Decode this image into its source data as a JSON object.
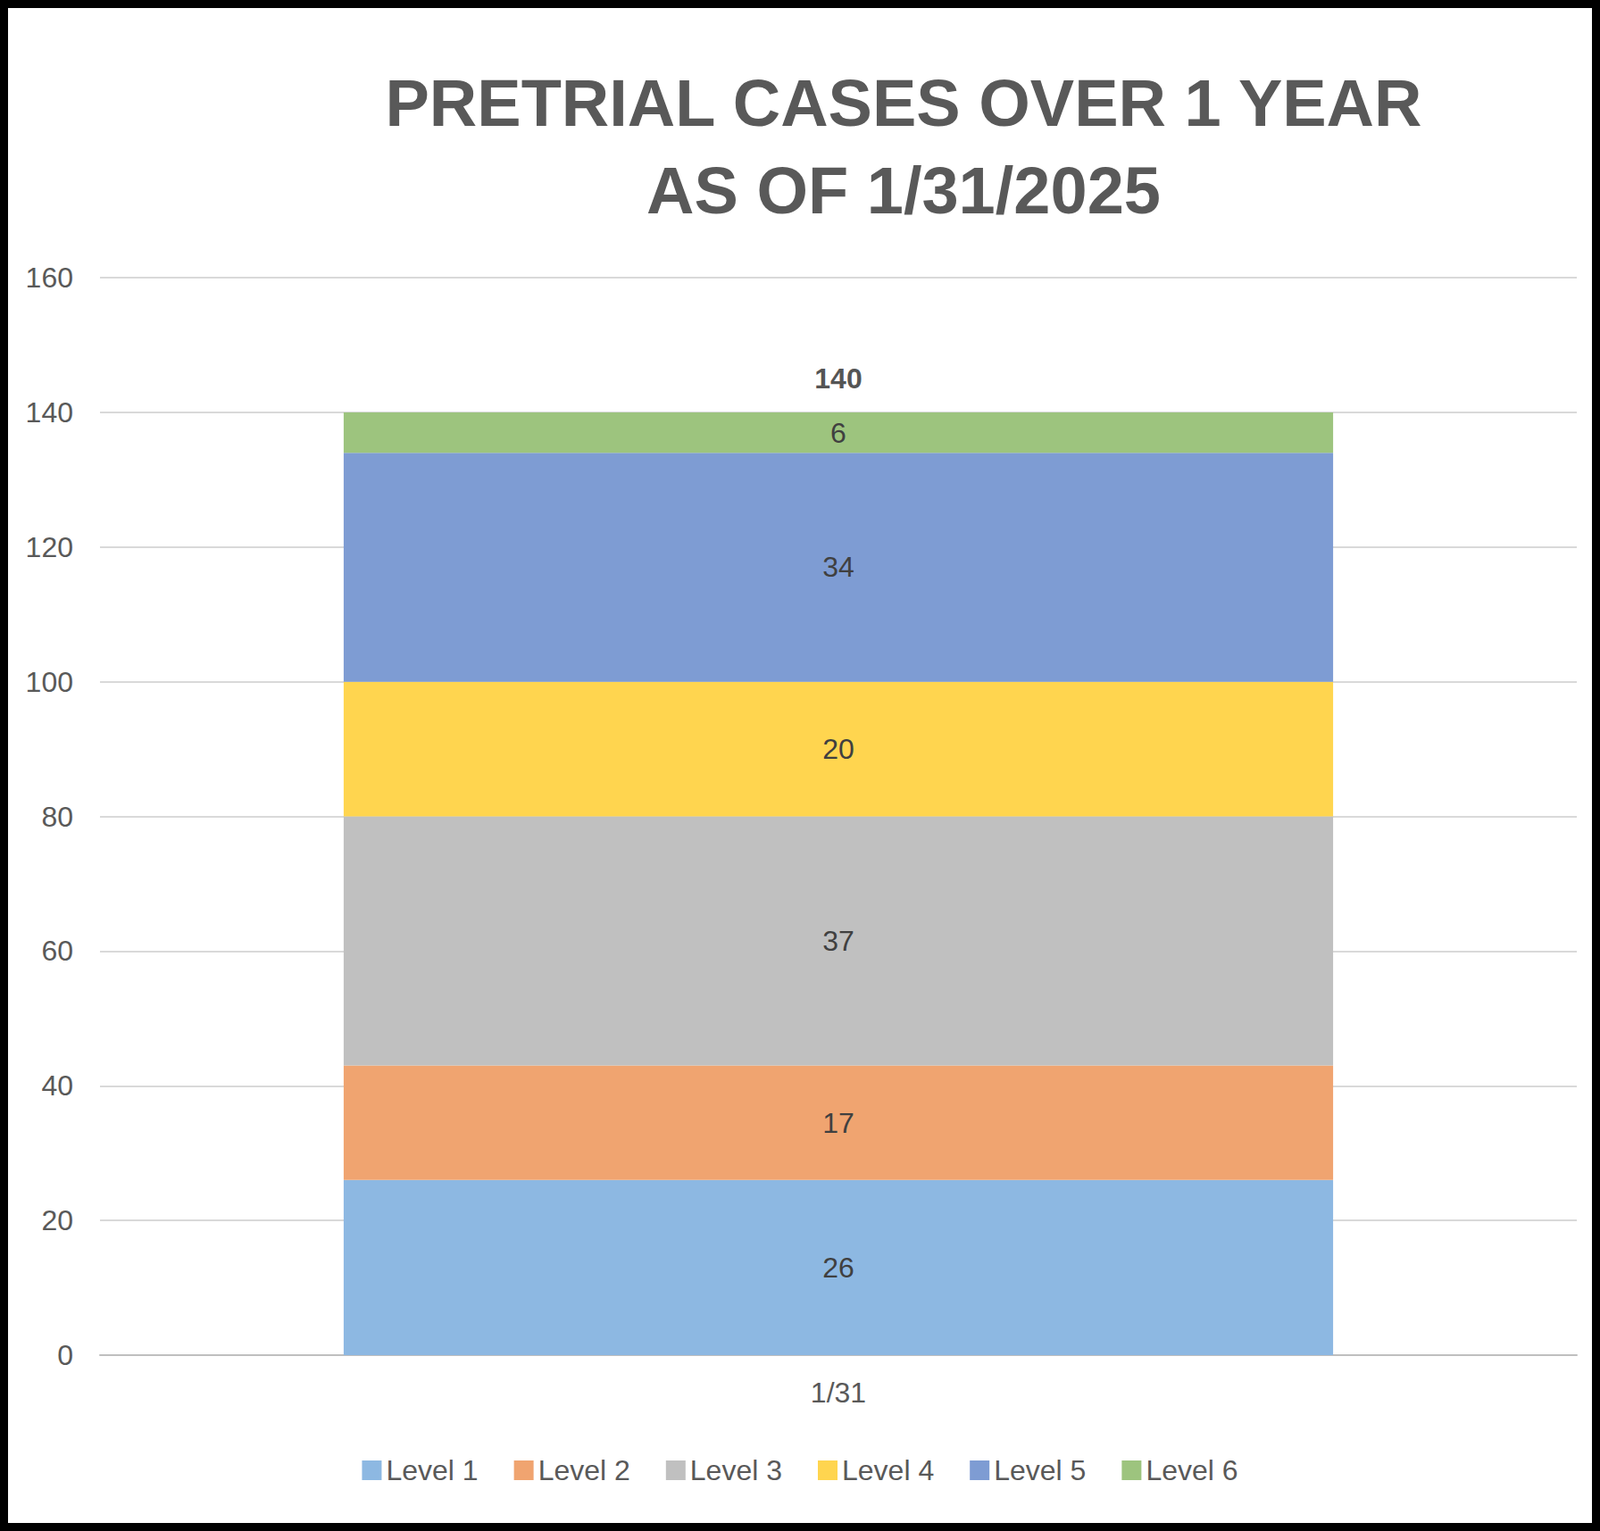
{
  "chart_data": {
    "type": "bar",
    "title": "PRETRIAL CASES OVER 1 YEAR\nAS OF 1/31/2025",
    "categories": [
      "1/31"
    ],
    "series": [
      {
        "name": "Level 1",
        "color": "#8db8e2",
        "values": [
          26
        ]
      },
      {
        "name": "Level 2",
        "color": "#f0a470",
        "values": [
          17
        ]
      },
      {
        "name": "Level 3",
        "color": "#c0c0c0",
        "values": [
          37
        ]
      },
      {
        "name": "Level 4",
        "color": "#ffd54f",
        "values": [
          20
        ]
      },
      {
        "name": "Level 5",
        "color": "#7e9cd3",
        "values": [
          34
        ]
      },
      {
        "name": "Level 6",
        "color": "#9dc47e",
        "values": [
          6
        ]
      }
    ],
    "totals": [
      140
    ],
    "stacked": true,
    "data_labels": true,
    "ylim": [
      0,
      160
    ],
    "yticks": [
      0,
      20,
      40,
      60,
      80,
      100,
      120,
      140,
      160
    ],
    "grid": true,
    "legend": "bottom"
  }
}
